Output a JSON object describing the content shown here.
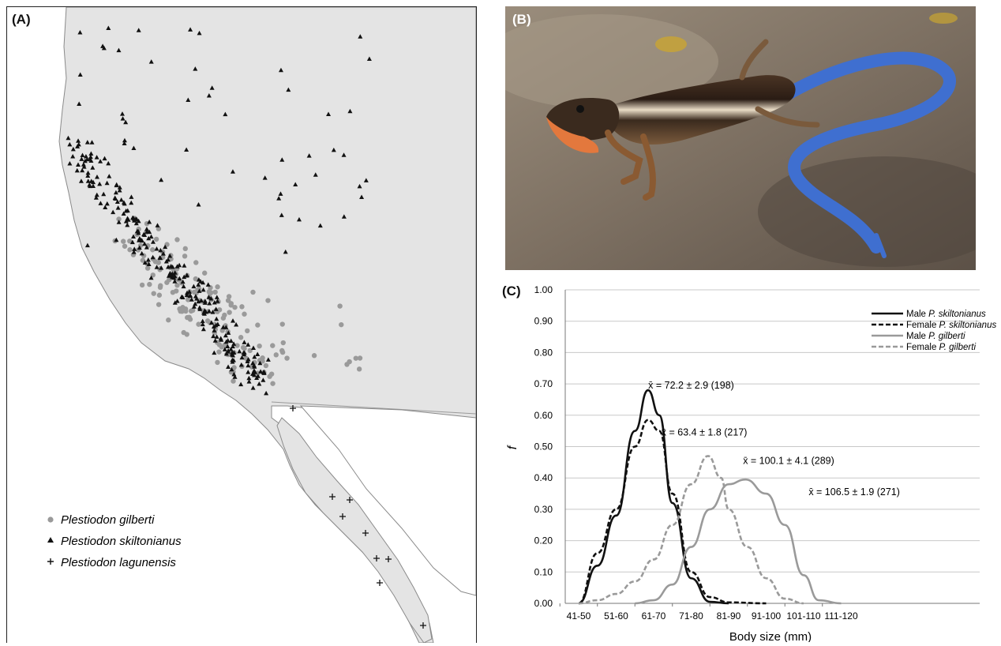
{
  "panel_a": {
    "label": "(A)",
    "legend": [
      {
        "symbol": "dot",
        "species": "Plestiodon gilberti"
      },
      {
        "symbol": "triangle",
        "species": "Plestiodon skiltonianus"
      },
      {
        "symbol": "cross",
        "species": "Plestiodon lagunensis"
      }
    ],
    "colors": {
      "land": "#e4e4e4",
      "ocean": "#ffffff",
      "gilberti": "#9a9a9a",
      "skiltonianus": "#111111",
      "lagunensis": "#111111"
    }
  },
  "panel_b": {
    "label": "(B)",
    "colors": {
      "rock": "#8a7c6c",
      "body": "#3a2a1e",
      "tail": "#3f6fd0",
      "head": "#e3783d"
    }
  },
  "panel_c": {
    "label": "(C)"
  },
  "chart_data": {
    "type": "line",
    "xlabel": "Body size (mm)",
    "ylabel": "f",
    "categories": [
      "41-50",
      "51-60",
      "61-70",
      "71-80",
      "81-90",
      "91-100",
      "101-110",
      "111-120"
    ],
    "ylim": [
      0,
      1.0
    ],
    "yticks": [
      "0.00",
      "0.10",
      "0.20",
      "0.30",
      "0.40",
      "0.50",
      "0.60",
      "0.70",
      "0.80",
      "0.90",
      "1.00"
    ],
    "grid": true,
    "legend_position": "top-right",
    "series": [
      {
        "name": "Male P. skiltonianus",
        "prefix": "Male ",
        "italic": "P. skiltonianus",
        "color": "#111111",
        "dash": false,
        "points": [
          [
            0,
            0
          ],
          [
            0.5,
            0.12
          ],
          [
            1,
            0.28
          ],
          [
            1.5,
            0.55
          ],
          [
            1.85,
            0.68
          ],
          [
            2.15,
            0.6
          ],
          [
            2.5,
            0.32
          ],
          [
            3,
            0.08
          ],
          [
            3.5,
            0.005
          ],
          [
            4,
            0
          ]
        ],
        "annotation": "x̄ = 72.2 ± 2.9 (198)"
      },
      {
        "name": "Female P. skiltonianus",
        "prefix": "Female ",
        "italic": "P. skiltonianus",
        "color": "#111111",
        "dash": true,
        "points": [
          [
            0,
            0
          ],
          [
            0.5,
            0.16
          ],
          [
            1,
            0.3
          ],
          [
            1.5,
            0.5
          ],
          [
            1.85,
            0.585
          ],
          [
            2.15,
            0.55
          ],
          [
            2.5,
            0.35
          ],
          [
            3,
            0.1
          ],
          [
            3.5,
            0.02
          ],
          [
            4,
            0.003
          ],
          [
            5,
            0
          ]
        ],
        "annotation": "x̄ = 63.4 ± 1.8 (217)"
      },
      {
        "name": "Male P. gilberti",
        "prefix": "Male ",
        "italic": "P. gilberti",
        "color": "#9a9a9a",
        "dash": false,
        "points": [
          [
            1.5,
            0
          ],
          [
            2,
            0.01
          ],
          [
            2.5,
            0.06
          ],
          [
            3,
            0.18
          ],
          [
            3.5,
            0.3
          ],
          [
            4,
            0.38
          ],
          [
            4.45,
            0.395
          ],
          [
            5,
            0.35
          ],
          [
            5.5,
            0.25
          ],
          [
            6,
            0.09
          ],
          [
            6.4,
            0.01
          ],
          [
            7,
            0
          ]
        ],
        "annotation": "x̄ = 106.5 ± 1.9 (271)"
      },
      {
        "name": "Female P. gilberti",
        "prefix": "Female ",
        "italic": "P. gilberti",
        "color": "#9a9a9a",
        "dash": true,
        "points": [
          [
            0,
            0
          ],
          [
            0.5,
            0.01
          ],
          [
            1,
            0.03
          ],
          [
            1.5,
            0.07
          ],
          [
            2,
            0.14
          ],
          [
            2.5,
            0.25
          ],
          [
            3,
            0.38
          ],
          [
            3.45,
            0.47
          ],
          [
            3.8,
            0.4
          ],
          [
            4,
            0.3
          ],
          [
            4.5,
            0.18
          ],
          [
            5,
            0.08
          ],
          [
            5.5,
            0.015
          ],
          [
            6,
            0
          ]
        ],
        "annotation": "x̄ = 100.1 ± 4.1 (289)"
      }
    ]
  }
}
